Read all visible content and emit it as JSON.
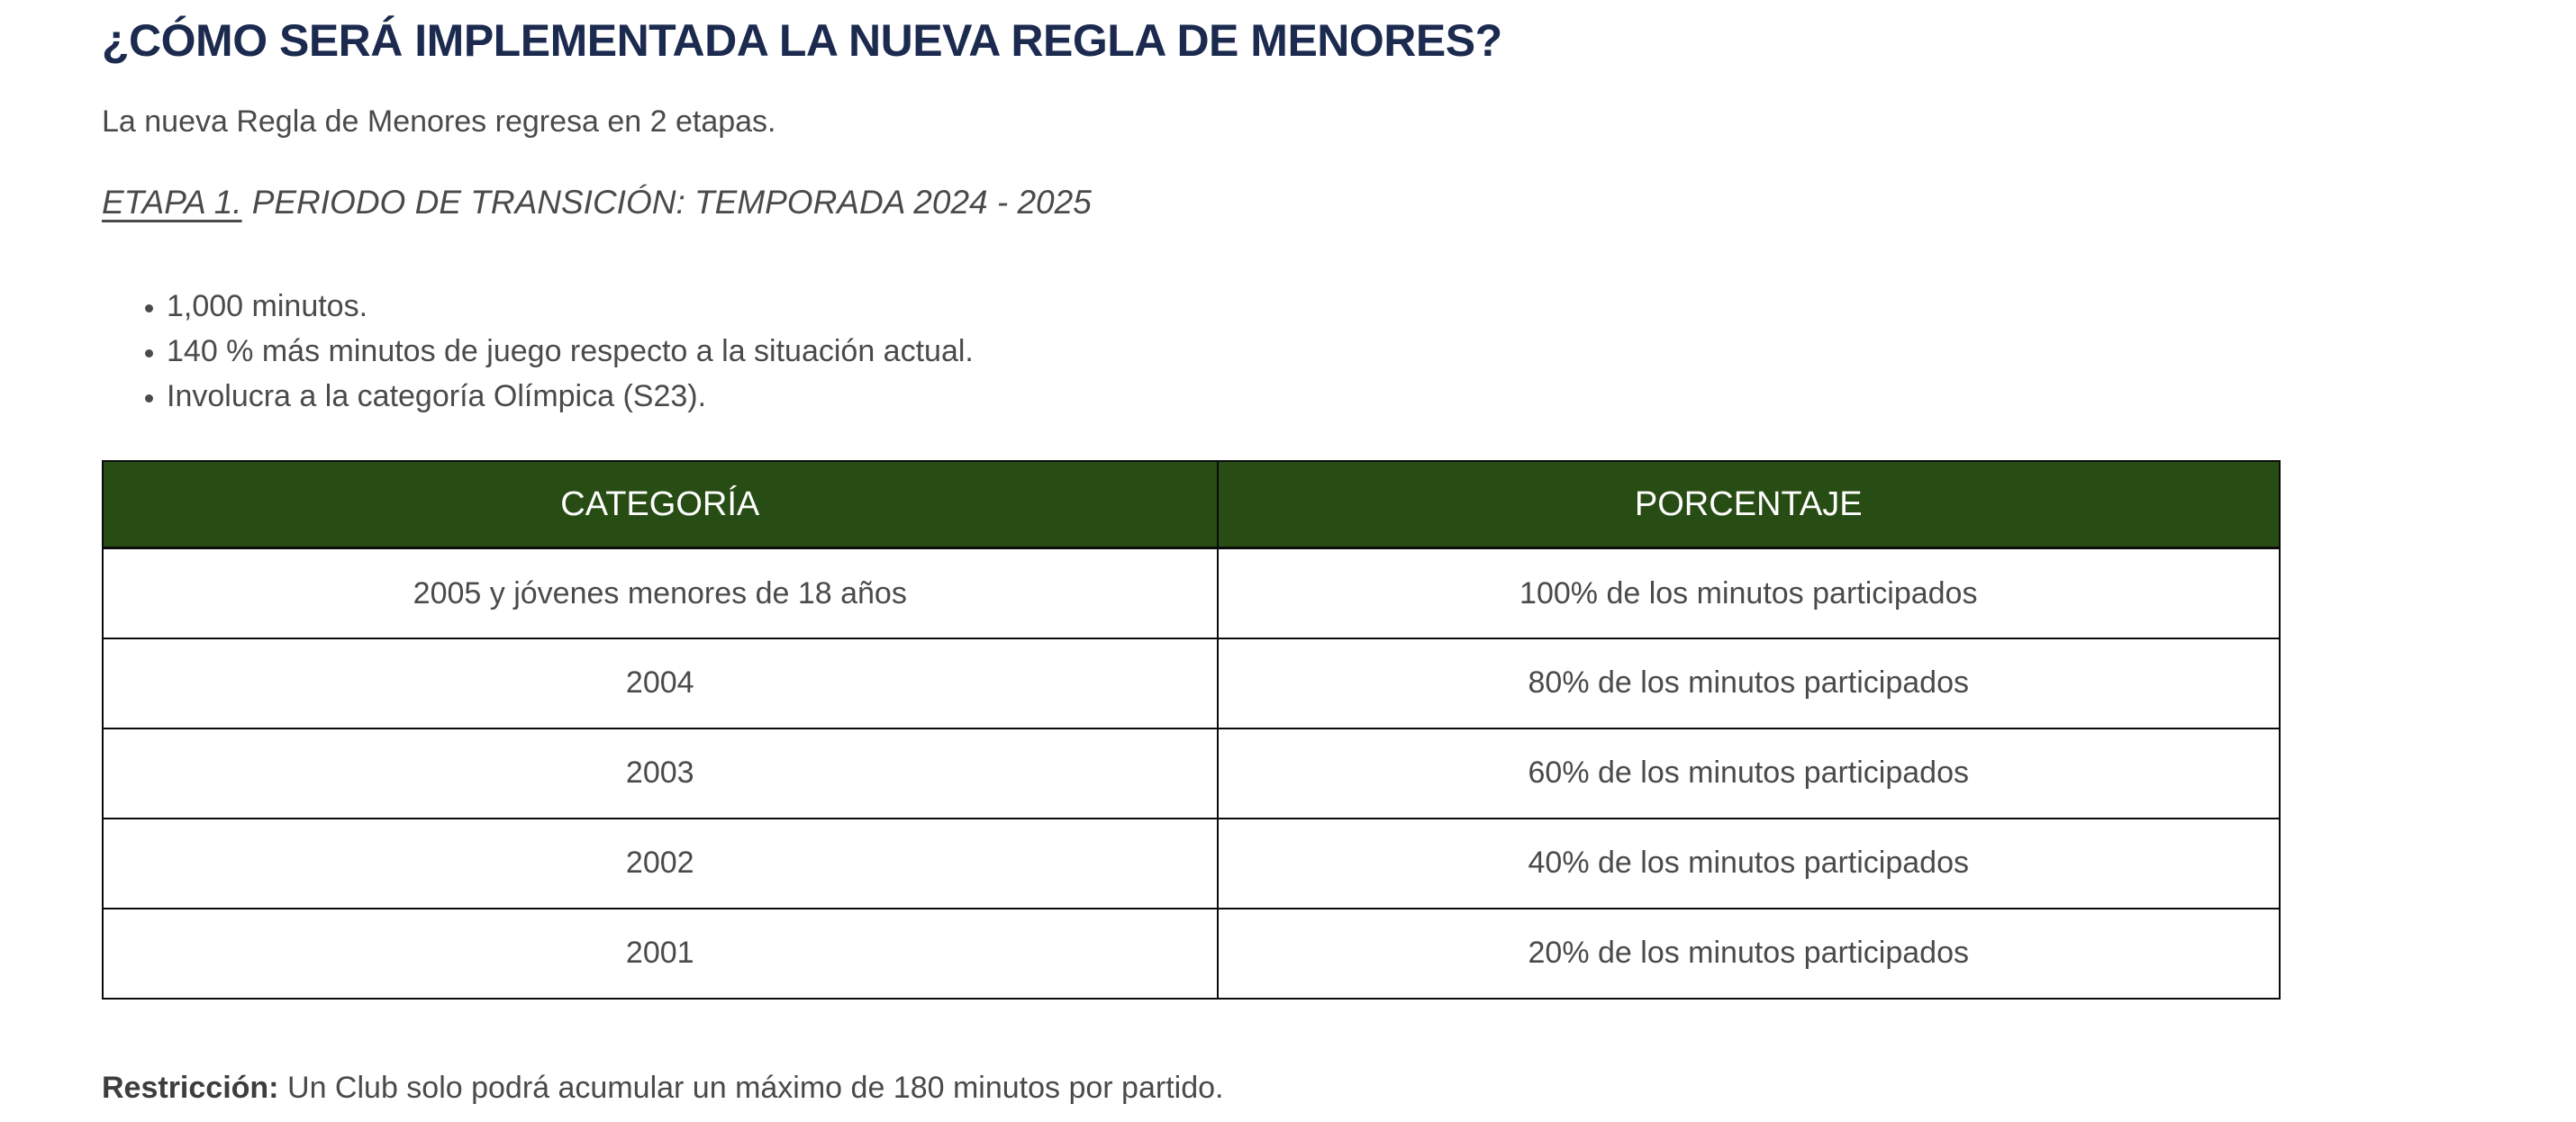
{
  "title": "¿CÓMO SERÁ IMPLEMENTADA LA NUEVA REGLA DE MENORES?",
  "intro": "La nueva Regla de Menores regresa en 2 etapas.",
  "stage": {
    "label": "ETAPA 1.",
    "text": "PERIODO DE TRANSICIÓN: TEMPORADA 2024 - 2025"
  },
  "bullets": [
    "1,000 minutos.",
    "140 % más minutos de juego respecto a la situación actual.",
    "Involucra a la categoría Olímpica (S23)."
  ],
  "table": {
    "columns": [
      "CATEGORÍA",
      "PORCENTAJE"
    ],
    "rows": [
      [
        "2005 y jóvenes menores de 18 años",
        "100% de los minutos participados"
      ],
      [
        "2004",
        "80% de los minutos participados"
      ],
      [
        "2003",
        "60% de los minutos participados"
      ],
      [
        "2002",
        "40% de los minutos participados"
      ],
      [
        "2001",
        "20% de los minutos participados"
      ]
    ]
  },
  "restriction": {
    "label": "Restricción:",
    "text": "Un Club solo podrá acumular un máximo de 180 minutos por partido."
  },
  "colors": {
    "title": "#1b2a4e",
    "body_text": "#4a4a4a",
    "table_header_bg": "#274d14",
    "table_header_text": "#ffffff",
    "table_border": "#0b0b0b",
    "background": "#ffffff"
  }
}
